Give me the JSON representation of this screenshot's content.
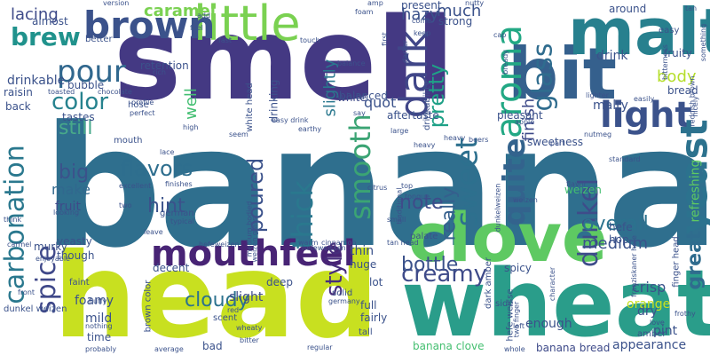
{
  "palette": {
    "c1": "#440154",
    "c2": "#482475",
    "c3": "#414487",
    "c4": "#355f8d",
    "c5": "#2a788e",
    "c6": "#21918c",
    "c7": "#22a884",
    "c8": "#44bf70",
    "c9": "#7ad151",
    "c10": "#bddf26"
  },
  "words": [
    {
      "text": "banana"
    },
    {
      "text": "smell"
    },
    {
      "text": "head"
    },
    {
      "text": "wheat"
    },
    {
      "text": "clove"
    },
    {
      "text": "bit"
    },
    {
      "text": "malt"
    },
    {
      "text": "little"
    },
    {
      "text": "mouthfeel"
    },
    {
      "text": "brown"
    },
    {
      "text": "pour"
    },
    {
      "text": "dark"
    },
    {
      "text": "light"
    },
    {
      "text": "yeast"
    },
    {
      "text": "carbonation"
    },
    {
      "text": "aroma"
    },
    {
      "text": "spice"
    },
    {
      "text": "sweet"
    },
    {
      "text": "smooth"
    },
    {
      "text": "quite"
    },
    {
      "text": "dunkel"
    },
    {
      "text": "thick"
    },
    {
      "text": "glass"
    },
    {
      "text": "color"
    },
    {
      "text": "brew"
    },
    {
      "text": "creamy"
    },
    {
      "text": "style"
    },
    {
      "text": "flavors"
    },
    {
      "text": "poured"
    },
    {
      "text": "bottle"
    },
    {
      "text": "cloudy"
    },
    {
      "text": "still"
    },
    {
      "text": "hint"
    },
    {
      "text": "pretty"
    },
    {
      "text": "really"
    },
    {
      "text": "overall"
    },
    {
      "text": "great"
    },
    {
      "text": "note"
    },
    {
      "text": "caramel"
    },
    {
      "text": "lacing"
    },
    {
      "text": "big"
    },
    {
      "text": "body"
    },
    {
      "text": "much"
    },
    {
      "text": "hazy"
    },
    {
      "text": "finish"
    },
    {
      "text": "slightly"
    },
    {
      "text": "well"
    },
    {
      "text": "make"
    },
    {
      "text": "quot"
    },
    {
      "text": "medium"
    },
    {
      "text": "drinkable"
    },
    {
      "text": "fruit"
    },
    {
      "text": "malty"
    },
    {
      "text": "drink"
    },
    {
      "text": "crisp"
    },
    {
      "text": "refreshing"
    },
    {
      "text": "orange"
    },
    {
      "text": "pint"
    },
    {
      "text": "dry"
    },
    {
      "text": "slight"
    },
    {
      "text": "appearance"
    },
    {
      "text": "banana clove"
    },
    {
      "text": "banana bread"
    },
    {
      "text": "bad"
    },
    {
      "text": "time"
    },
    {
      "text": "mild"
    },
    {
      "text": "foamy"
    },
    {
      "text": "murky"
    },
    {
      "text": "lot"
    },
    {
      "text": "thin"
    },
    {
      "text": "huge"
    },
    {
      "text": "full"
    },
    {
      "text": "enough"
    },
    {
      "text": "hefe"
    },
    {
      "text": "weizen"
    },
    {
      "text": "hop"
    },
    {
      "text": "sweetness"
    },
    {
      "text": "strong"
    },
    {
      "text": "present"
    },
    {
      "text": "white head"
    },
    {
      "text": "white"
    },
    {
      "text": "balanced"
    },
    {
      "text": "drinking"
    },
    {
      "text": "retention"
    },
    {
      "text": "bubble"
    },
    {
      "text": "raisin"
    },
    {
      "text": "back"
    },
    {
      "text": "tastes"
    },
    {
      "text": "almost"
    },
    {
      "text": "better"
    },
    {
      "text": "hose"
    },
    {
      "text": "aftertaste"
    },
    {
      "text": "pleasant"
    },
    {
      "text": "fruity"
    },
    {
      "text": "bread"
    },
    {
      "text": "around"
    },
    {
      "text": "easy"
    },
    {
      "text": "tan"
    },
    {
      "text": "version"
    },
    {
      "text": "feel"
    },
    {
      "text": "add"
    },
    {
      "text": "foam"
    },
    {
      "text": "amp"
    },
    {
      "text": "nutty"
    },
    {
      "text": "first"
    },
    {
      "text": "keep"
    },
    {
      "text": "cap"
    },
    {
      "text": "darker"
    },
    {
      "text": "drinkability"
    },
    {
      "text": "rich"
    },
    {
      "text": "chocolate"
    },
    {
      "text": "toasted"
    },
    {
      "text": "profile"
    },
    {
      "text": "perfect"
    },
    {
      "text": "high"
    },
    {
      "text": "say"
    },
    {
      "text": "earthy"
    },
    {
      "text": "large"
    },
    {
      "text": "mouth"
    },
    {
      "text": "seem"
    },
    {
      "text": "lace"
    },
    {
      "text": "finishes"
    },
    {
      "text": "excellent"
    },
    {
      "text": "two"
    },
    {
      "text": "german"
    },
    {
      "text": "typical"
    },
    {
      "text": "leave"
    },
    {
      "text": "looking"
    },
    {
      "text": "medium bodied"
    },
    {
      "text": "weizen glass"
    },
    {
      "text": "palate"
    },
    {
      "text": "small"
    },
    {
      "text": "traditional"
    },
    {
      "text": "citrus"
    },
    {
      "text": "top"
    },
    {
      "text": "tongue"
    },
    {
      "text": "heavy"
    },
    {
      "text": "beers"
    },
    {
      "text": "dunkelweizen"
    },
    {
      "text": "weizen"
    },
    {
      "text": "standard"
    },
    {
      "text": "hefeweizen"
    },
    {
      "text": "yeasty"
    },
    {
      "text": "though"
    },
    {
      "text": "carmel"
    },
    {
      "text": "enjoyable"
    },
    {
      "text": "front"
    },
    {
      "text": "dunkel weizen"
    },
    {
      "text": "think"
    },
    {
      "text": "decent"
    },
    {
      "text": "deep"
    },
    {
      "text": "faint"
    },
    {
      "text": "scent"
    },
    {
      "text": "fluffy"
    },
    {
      "text": "nothing"
    },
    {
      "text": "probably"
    },
    {
      "text": "brown color"
    },
    {
      "text": "average"
    },
    {
      "text": "wheaty"
    },
    {
      "text": "bitter"
    },
    {
      "text": "red"
    },
    {
      "text": "regular"
    },
    {
      "text": "warm"
    },
    {
      "text": "cinnamon"
    },
    {
      "text": "tan head"
    },
    {
      "text": "hefeweissen"
    },
    {
      "text": "solid"
    },
    {
      "text": "germany"
    },
    {
      "text": "fairly"
    },
    {
      "text": "tall"
    },
    {
      "text": "dark amber"
    },
    {
      "text": "spicy"
    },
    {
      "text": "hefe weisse"
    },
    {
      "text": "side"
    },
    {
      "text": "two finger"
    },
    {
      "text": "left"
    },
    {
      "text": "character"
    },
    {
      "text": "whole"
    },
    {
      "text": "finger head"
    },
    {
      "text": "amber"
    },
    {
      "text": "love"
    },
    {
      "text": "frothy"
    },
    {
      "text": "franziskaner hefe"
    },
    {
      "text": "reddish brown"
    },
    {
      "text": "nicely"
    },
    {
      "text": "something"
    },
    {
      "text": "bitterness"
    },
    {
      "text": "lighter"
    },
    {
      "text": "easily"
    },
    {
      "text": "nutmeg"
    },
    {
      "text": "apple"
    },
    {
      "text": "part"
    },
    {
      "text": "balance"
    },
    {
      "text": "heavy"
    },
    {
      "text": "come"
    },
    {
      "text": "easy drink"
    },
    {
      "text": "touch"
    },
    {
      "text": "fast"
    },
    {
      "text": "bready"
    },
    {
      "text": "flavor"
    }
  ]
}
